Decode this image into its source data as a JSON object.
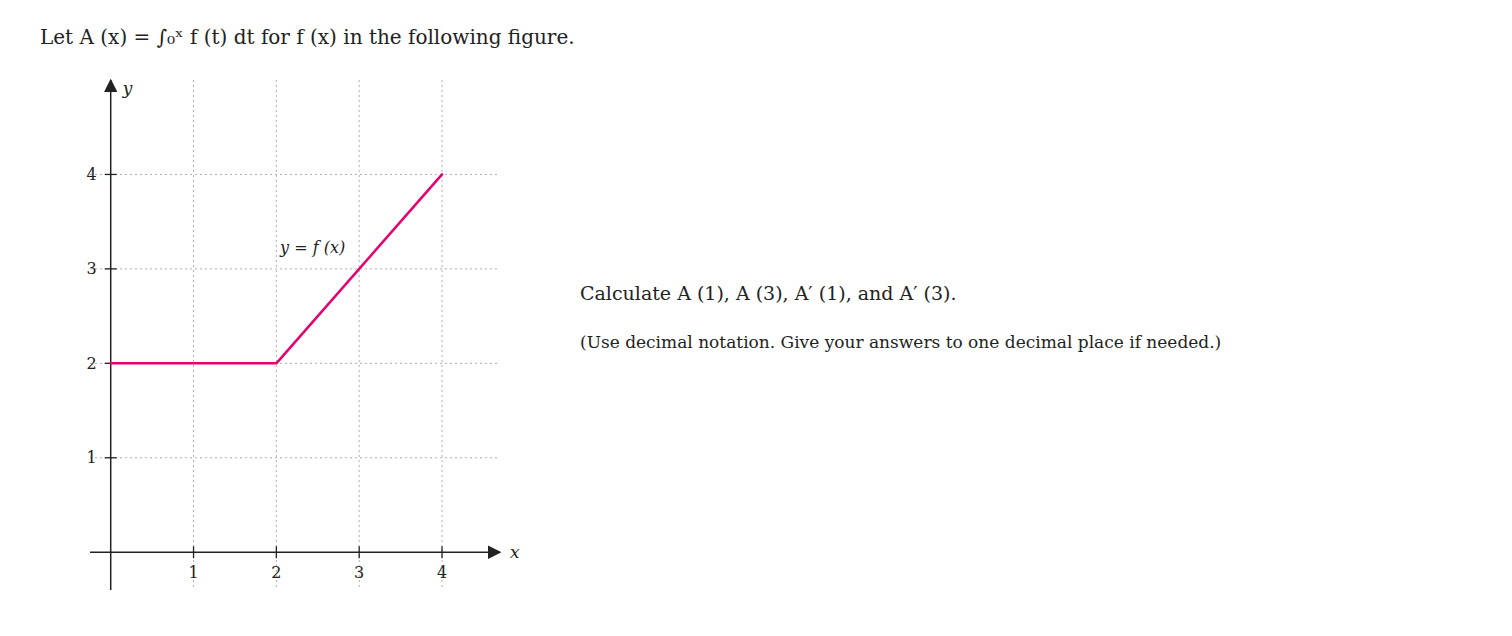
{
  "chart_data": {
    "type": "line",
    "title": "Let A (x) = ∫₀ˣ f (t) dt for f (x) in the following figure.",
    "annotations": [
      "Calculate A (1), A (3), A′ (1), and A′ (3).",
      "(Use decimal notation. Give your answers to one decimal place if needed.)"
    ],
    "xlabel": "x",
    "ylabel": "y",
    "x": [
      0,
      2,
      4
    ],
    "series": [
      {
        "name": "y = f (x)",
        "color": "#e8006e",
        "values": [
          2,
          2,
          4
        ]
      }
    ],
    "xlim": [
      -0.25,
      4.7
    ],
    "ylim": [
      -0.4,
      5.0
    ],
    "xticks": [
      1,
      2,
      3,
      4
    ],
    "yticks": [
      1,
      2,
      3,
      4
    ],
    "grid": true
  }
}
